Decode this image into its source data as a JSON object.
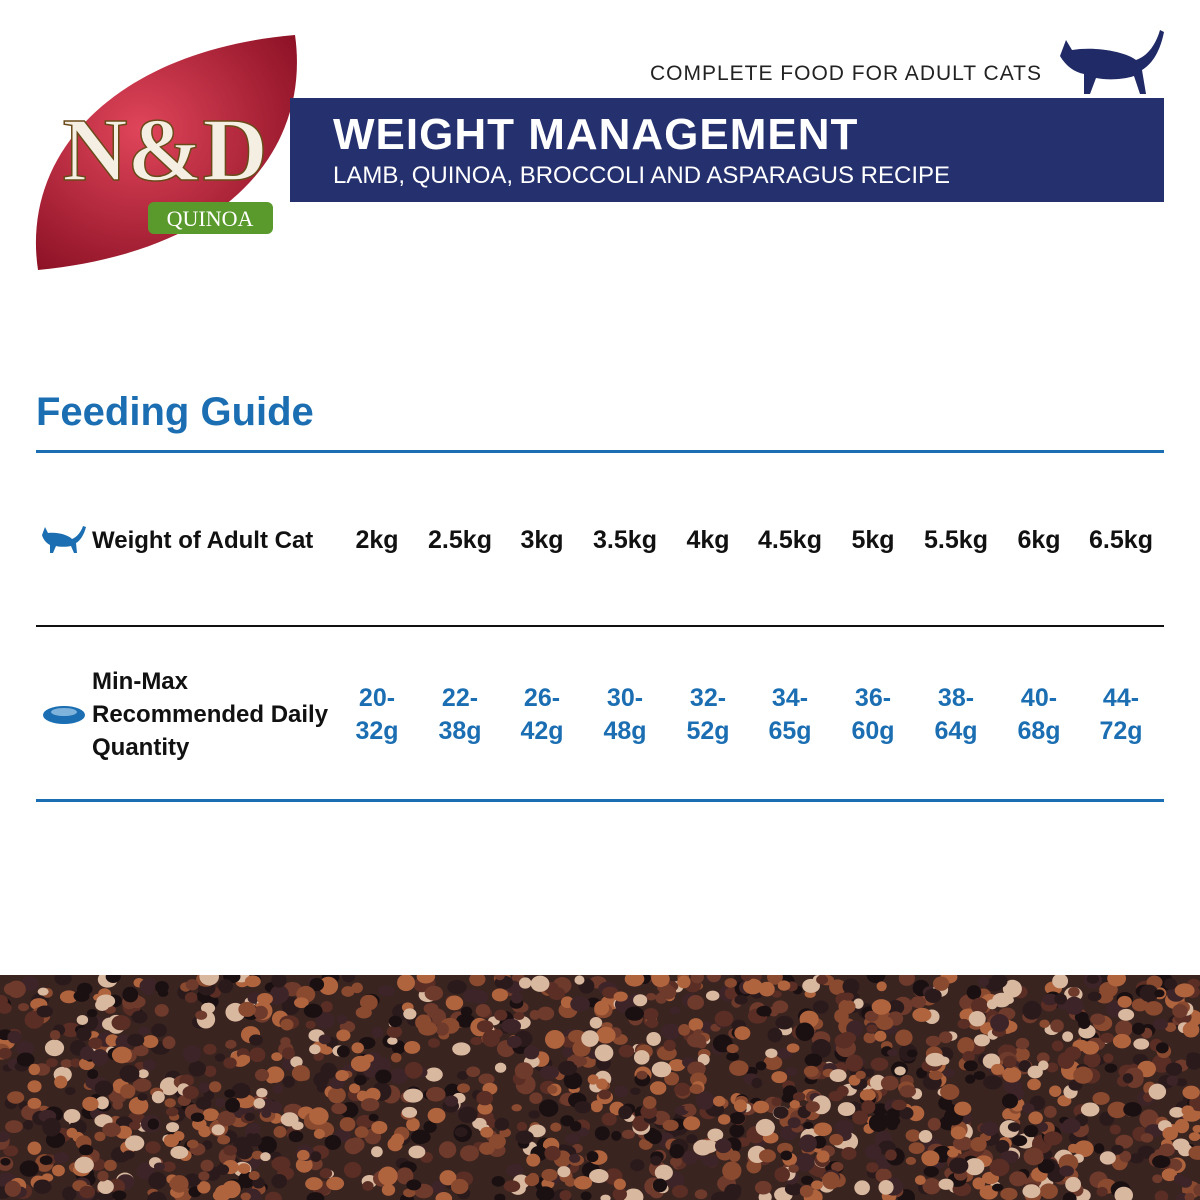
{
  "brand": {
    "logo": "N&D",
    "sub": "QUINOA"
  },
  "header": {
    "tagline": "COMPLETE FOOD FOR ADULT CATS",
    "title": "WEIGHT MANAGEMENT",
    "subtitle": "LAMB, QUINOA, BROCCOLI AND ASPARAGUS RECIPE"
  },
  "feeding_guide": {
    "title": "Feeding Guide",
    "rows": [
      [
        "Weight of Adult Cat",
        "2kg",
        "2.5kg",
        "3kg",
        "3.5kg",
        "4kg",
        "4.5kg",
        "5kg",
        "5.5kg",
        "6kg",
        "6.5kg"
      ],
      [
        "Min-Max Recommended Daily Quantity",
        "20-32g",
        "22-38g",
        "26-42g",
        "30-48g",
        "32-52g",
        "34-65g",
        "36-60g",
        "38-64g",
        "40-68g",
        "44-72g"
      ]
    ]
  }
}
